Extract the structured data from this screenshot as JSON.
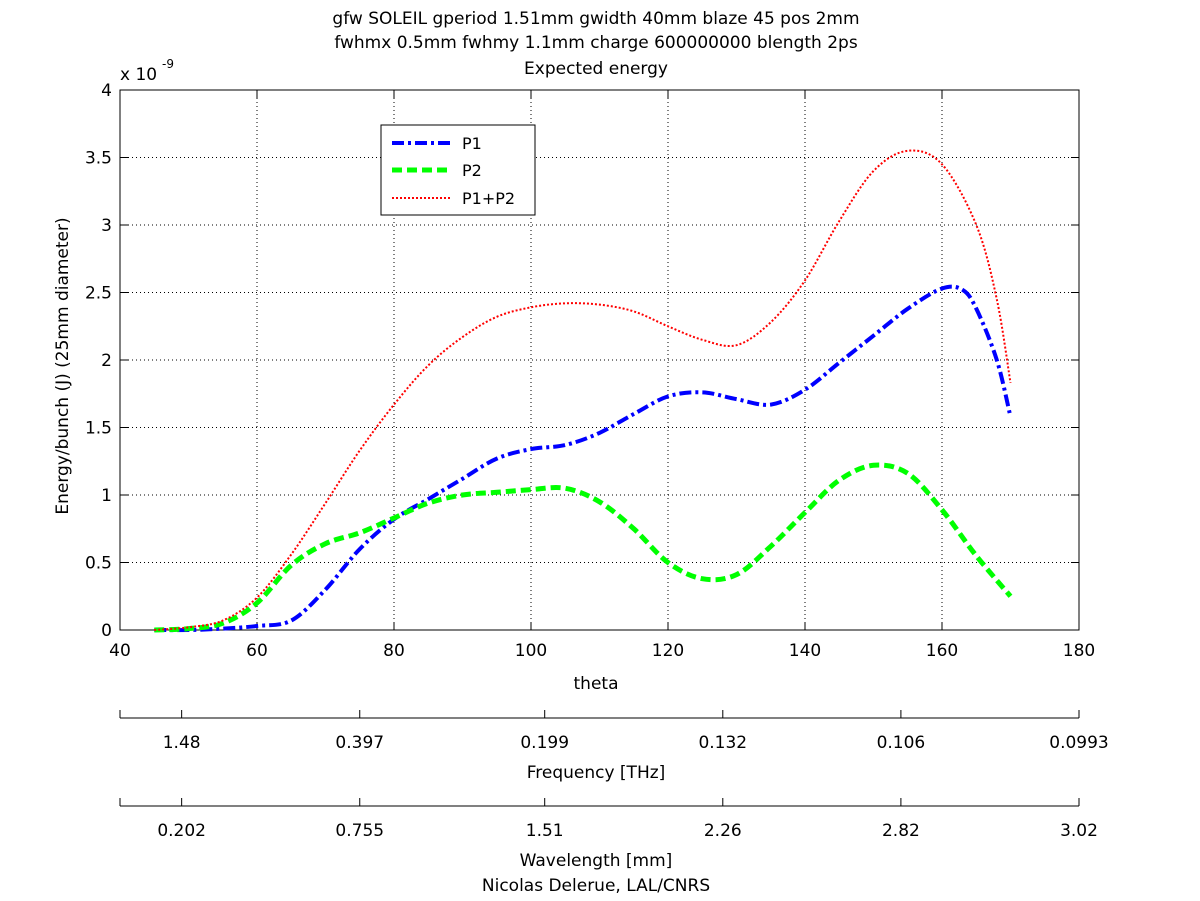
{
  "chart_data": {
    "type": "line",
    "title": [
      "gfw SOLEIL gperiod 1.51mm gwidth 40mm blaze 45 pos 2mm",
      "fwhmx 0.5mm fwhmy 1.1mm charge 600000000 blength 2ps",
      "Expected energy"
    ],
    "xlabel": "theta",
    "ylabel": "Energy/bunch (J) (25mm diameter)",
    "y_exponent_base": "x 10",
    "y_exponent_power": "-9",
    "xlim": [
      40,
      180
    ],
    "ylim": [
      0,
      4
    ],
    "xticks": [
      "40",
      "60",
      "80",
      "100",
      "120",
      "140",
      "160",
      "180"
    ],
    "yticks": [
      "0",
      "0.5",
      "1",
      "1.5",
      "2",
      "2.5",
      "3",
      "3.5",
      "4"
    ],
    "grid": true,
    "legend_position": "upper-left",
    "series": [
      {
        "name": "P1",
        "color": "#0000ff",
        "style": "dashdot",
        "x": [
          45,
          50,
          55,
          60,
          65,
          70,
          75,
          80,
          85,
          90,
          95,
          100,
          105,
          110,
          115,
          120,
          125,
          130,
          135,
          140,
          145,
          150,
          155,
          160,
          163,
          165,
          168,
          170
        ],
        "y": [
          0.0,
          0.0,
          0.01,
          0.03,
          0.07,
          0.3,
          0.6,
          0.82,
          0.97,
          1.12,
          1.27,
          1.34,
          1.37,
          1.46,
          1.6,
          1.73,
          1.76,
          1.71,
          1.67,
          1.78,
          1.98,
          2.18,
          2.38,
          2.53,
          2.52,
          2.38,
          2.0,
          1.58
        ]
      },
      {
        "name": "P2",
        "color": "#00ff00",
        "style": "dashed",
        "x": [
          45,
          50,
          55,
          60,
          65,
          70,
          75,
          80,
          85,
          90,
          95,
          100,
          105,
          110,
          115,
          120,
          125,
          130,
          135,
          140,
          145,
          150,
          155,
          160,
          165,
          170
        ],
        "y": [
          0.0,
          0.01,
          0.05,
          0.2,
          0.48,
          0.64,
          0.72,
          0.83,
          0.94,
          1.0,
          1.02,
          1.04,
          1.05,
          0.95,
          0.75,
          0.5,
          0.38,
          0.41,
          0.62,
          0.87,
          1.11,
          1.22,
          1.16,
          0.89,
          0.55,
          0.25
        ]
      },
      {
        "name": "P1+P2",
        "color": "#ff0000",
        "style": "dotted",
        "x": [
          45,
          50,
          55,
          60,
          65,
          70,
          75,
          80,
          85,
          90,
          95,
          100,
          105,
          110,
          115,
          120,
          125,
          130,
          135,
          140,
          145,
          150,
          155,
          160,
          165,
          168,
          170
        ],
        "y": [
          0.0,
          0.02,
          0.07,
          0.24,
          0.56,
          0.94,
          1.33,
          1.67,
          1.96,
          2.17,
          2.32,
          2.39,
          2.42,
          2.41,
          2.36,
          2.25,
          2.15,
          2.11,
          2.28,
          2.59,
          3.03,
          3.4,
          3.55,
          3.45,
          3.0,
          2.45,
          1.83
        ]
      }
    ],
    "secondary_axes": [
      {
        "label": "Frequency [THz]",
        "ticks": [
          "1.48",
          "0.397",
          "0.199",
          "0.132",
          "0.106",
          "0.0993"
        ],
        "tick_theta": [
          49,
          75,
          102,
          128,
          154,
          180
        ]
      },
      {
        "label": "Wavelength [mm]",
        "ticks": [
          "0.202",
          "0.755",
          "1.51",
          "2.26",
          "2.82",
          "3.02"
        ],
        "tick_theta": [
          49,
          75,
          102,
          128,
          154,
          180
        ]
      }
    ],
    "footer": "Nicolas Delerue, LAL/CNRS"
  }
}
